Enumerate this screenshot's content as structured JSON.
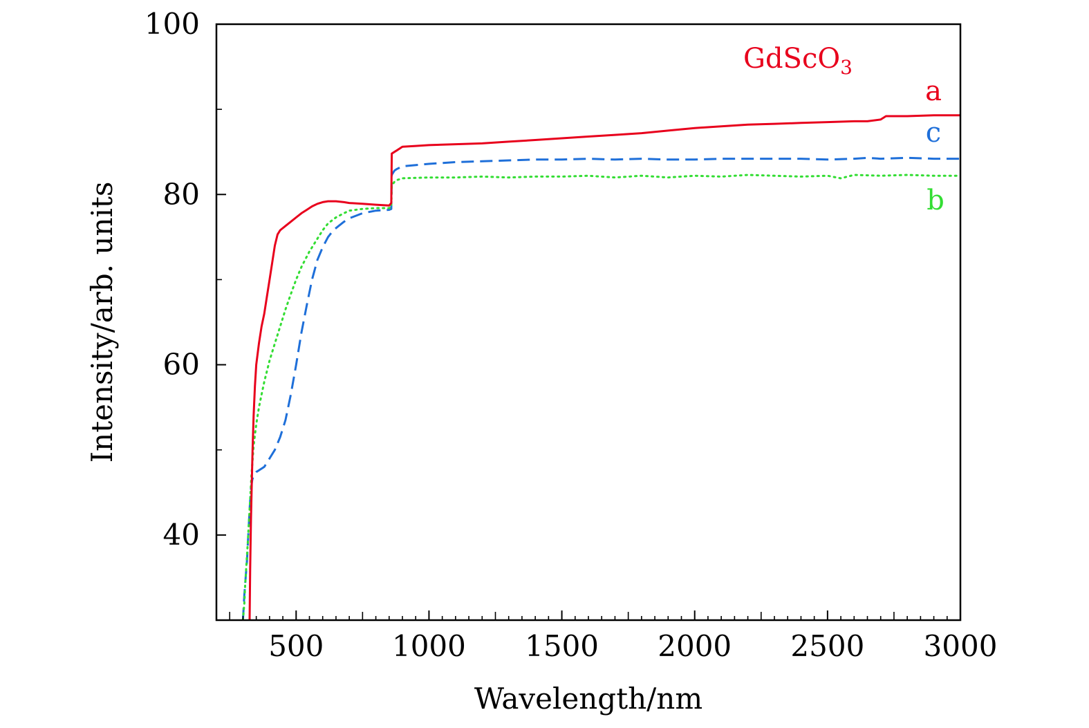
{
  "chart_data": {
    "type": "line",
    "title": "GdScO3",
    "title_main": "GdScO",
    "title_sub": "3",
    "title_color": "#e8001c",
    "xlabel": "Wavelength/nm",
    "ylabel": "Intensity/arb. units",
    "xlim": [
      200,
      3000
    ],
    "ylim": [
      30,
      100
    ],
    "xticks": [
      500,
      1000,
      1500,
      2000,
      2500,
      3000
    ],
    "xtick_labels": [
      "500",
      "1000",
      "1500",
      "2000",
      "2500",
      "3000"
    ],
    "yticks": [
      40,
      60,
      80,
      100
    ],
    "ytick_labels": [
      "40",
      "60",
      "80",
      "100"
    ],
    "grid": false,
    "series": [
      {
        "name": "a",
        "color": "#e8001c",
        "style": "solid",
        "x": [
          325,
          327,
          330,
          333,
          336,
          340,
          345,
          350,
          360,
          370,
          380,
          390,
          400,
          410,
          420,
          430,
          440,
          460,
          480,
          500,
          520,
          540,
          560,
          580,
          600,
          620,
          650,
          680,
          700,
          750,
          800,
          850,
          858,
          860,
          870,
          880,
          900,
          950,
          1000,
          1100,
          1200,
          1300,
          1400,
          1500,
          1600,
          1700,
          1800,
          1900,
          2000,
          2100,
          2200,
          2300,
          2400,
          2500,
          2600,
          2650,
          2700,
          2720,
          2800,
          2900,
          3000
        ],
        "y": [
          30,
          36,
          42,
          46,
          50,
          54,
          57.5,
          60,
          62.5,
          64.5,
          66,
          68,
          70,
          72,
          74,
          75.3,
          75.8,
          76.3,
          76.8,
          77.3,
          77.8,
          78.2,
          78.6,
          78.9,
          79.1,
          79.2,
          79.2,
          79.1,
          79.0,
          78.9,
          78.8,
          78.7,
          79.0,
          84.8,
          85.0,
          85.2,
          85.6,
          85.7,
          85.8,
          85.9,
          86.0,
          86.2,
          86.4,
          86.6,
          86.8,
          87.0,
          87.2,
          87.5,
          87.8,
          88.0,
          88.2,
          88.3,
          88.4,
          88.5,
          88.6,
          88.6,
          88.8,
          89.2,
          89.2,
          89.3,
          89.3
        ]
      },
      {
        "name": "b",
        "color": "#33dd33",
        "style": "dotted",
        "x": [
          300,
          305,
          308,
          312,
          318,
          325,
          332,
          340,
          350,
          360,
          370,
          380,
          400,
          420,
          440,
          460,
          480,
          500,
          520,
          550,
          580,
          600,
          620,
          650,
          680,
          700,
          750,
          800,
          850,
          858,
          860,
          870,
          880,
          900,
          1000,
          1100,
          1200,
          1300,
          1400,
          1500,
          1600,
          1700,
          1800,
          1900,
          2000,
          2100,
          2200,
          2300,
          2400,
          2500,
          2550,
          2600,
          2700,
          2800,
          2900,
          3000
        ],
        "y": [
          30,
          32,
          34,
          36,
          39,
          43,
          47,
          50.5,
          53,
          55,
          56.5,
          58,
          60.5,
          62.5,
          64.5,
          66.5,
          68.3,
          70,
          71.5,
          73.3,
          74.8,
          75.8,
          76.6,
          77.3,
          77.8,
          78.1,
          78.3,
          78.4,
          78.4,
          78.5,
          81.0,
          81.5,
          81.7,
          81.9,
          82.0,
          82.0,
          82.1,
          82.0,
          82.1,
          82.1,
          82.2,
          82.0,
          82.2,
          82.0,
          82.2,
          82.1,
          82.3,
          82.2,
          82.1,
          82.2,
          81.9,
          82.3,
          82.2,
          82.3,
          82.2,
          82.2
        ]
      },
      {
        "name": "c",
        "color": "#1e6fd9",
        "style": "dashed",
        "x": [
          300,
          305,
          310,
          315,
          320,
          325,
          330,
          335,
          340,
          350,
          360,
          380,
          400,
          420,
          440,
          460,
          480,
          500,
          520,
          540,
          560,
          580,
          600,
          620,
          640,
          660,
          680,
          700,
          750,
          800,
          850,
          858,
          860,
          870,
          880,
          900,
          1000,
          1100,
          1200,
          1300,
          1400,
          1500,
          1600,
          1700,
          1800,
          1900,
          2000,
          2100,
          2200,
          2300,
          2400,
          2500,
          2600,
          2650,
          2700,
          2800,
          2900,
          3000
        ],
        "y": [
          30,
          33,
          35,
          37,
          40,
          43,
          45.5,
          46.5,
          47,
          47.4,
          47.6,
          48,
          49,
          50,
          51.5,
          53.5,
          56.5,
          60,
          63.8,
          67,
          70,
          72.3,
          73.8,
          75,
          75.8,
          76.3,
          76.8,
          77.2,
          77.8,
          78.1,
          78.2,
          78.3,
          82.3,
          82.8,
          83.0,
          83.3,
          83.6,
          83.8,
          83.9,
          84.0,
          84.1,
          84.1,
          84.2,
          84.1,
          84.2,
          84.1,
          84.1,
          84.2,
          84.2,
          84.2,
          84.2,
          84.1,
          84.2,
          84.3,
          84.2,
          84.3,
          84.2,
          84.2
        ]
      }
    ],
    "legend": [
      {
        "label": "a",
        "color": "#e8001c"
      },
      {
        "label": "c",
        "color": "#1e6fd9"
      },
      {
        "label": "b",
        "color": "#33dd33"
      }
    ]
  }
}
